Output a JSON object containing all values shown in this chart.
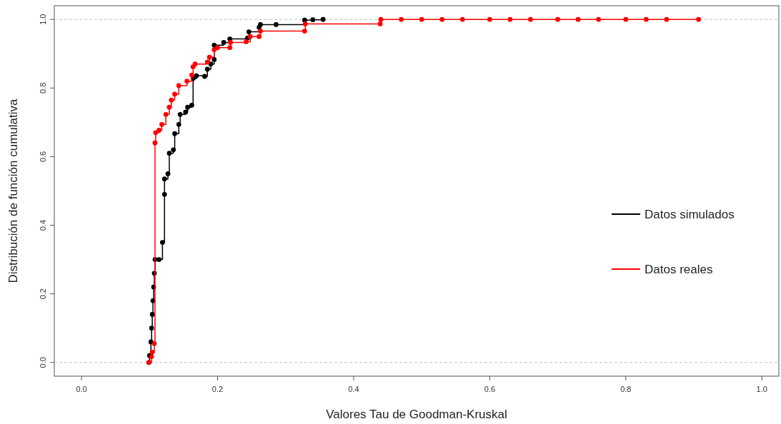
{
  "chart_data": {
    "type": "step",
    "xlabel": "Valores Tau de Goodman-Kruskal",
    "ylabel": "Distribución de función cumulativa",
    "xlim": [
      -0.04,
      1.025
    ],
    "ylim": [
      -0.04,
      1.04
    ],
    "xticks": [
      {
        "value": 0,
        "label": "0.0"
      },
      {
        "value": 0.2,
        "label": "0.2"
      },
      {
        "value": 0.4,
        "label": "0.4"
      },
      {
        "value": 0.6,
        "label": "0.6"
      },
      {
        "value": 0.8,
        "label": "0.8"
      },
      {
        "value": 1,
        "label": "1.0"
      }
    ],
    "yticks": [
      {
        "value": 0,
        "label": "0.0"
      },
      {
        "value": 0.2,
        "label": "0.2"
      },
      {
        "value": 0.4,
        "label": "0.4"
      },
      {
        "value": 0.6,
        "label": "0.6"
      },
      {
        "value": 0.8,
        "label": "0.8"
      },
      {
        "value": 1,
        "label": "1.0"
      }
    ],
    "marker": "circle",
    "legend": "right",
    "grid": false,
    "ref_lines": [
      {
        "axis": "y",
        "value": 0,
        "color": "#c0c0c0",
        "line_style": "dashed"
      },
      {
        "axis": "y",
        "value": 1,
        "color": "#c0c0c0",
        "line_style": "dashed"
      }
    ],
    "series": [
      {
        "name": "Datos simulados",
        "color": "#000000",
        "x": [
          0.099,
          0.1,
          0.102,
          0.103,
          0.104,
          0.105,
          0.106,
          0.107,
          0.108,
          0.114,
          0.119,
          0.122,
          0.122,
          0.127,
          0.129,
          0.135,
          0.137,
          0.143,
          0.145,
          0.153,
          0.156,
          0.162,
          0.164,
          0.169,
          0.181,
          0.185,
          0.19,
          0.195,
          0.195,
          0.209,
          0.218,
          0.244,
          0.246,
          0.261,
          0.263,
          0.286,
          0.328,
          0.34,
          0.355
        ],
        "values": [
          0.0,
          0.02,
          0.06,
          0.1,
          0.14,
          0.18,
          0.22,
          0.26,
          0.3,
          0.3,
          0.35,
          0.49,
          0.535,
          0.55,
          0.61,
          0.62,
          0.667,
          0.694,
          0.723,
          0.73,
          0.744,
          0.75,
          0.828,
          0.836,
          0.834,
          0.855,
          0.87,
          0.883,
          0.925,
          0.933,
          0.943,
          0.946,
          0.964,
          0.977,
          0.985,
          0.985,
          0.998,
          0.999,
          1.0
        ]
      },
      {
        "name": "Datos reales",
        "color": "#ff0000",
        "x": [
          0.099,
          0.103,
          0.104,
          0.107,
          0.108,
          0.109,
          0.114,
          0.118,
          0.124,
          0.129,
          0.132,
          0.137,
          0.143,
          0.155,
          0.162,
          0.164,
          0.167,
          0.185,
          0.188,
          0.195,
          0.2,
          0.218,
          0.219,
          0.242,
          0.248,
          0.261,
          0.263,
          0.328,
          0.329,
          0.439,
          0.44,
          0.47,
          0.5,
          0.53,
          0.56,
          0.6,
          0.63,
          0.66,
          0.7,
          0.73,
          0.76,
          0.8,
          0.83,
          0.86,
          0.907
        ],
        "values": [
          0.0,
          0.017,
          0.03,
          0.055,
          0.64,
          0.67,
          0.677,
          0.694,
          0.723,
          0.744,
          0.765,
          0.782,
          0.807,
          0.82,
          0.838,
          0.862,
          0.87,
          0.876,
          0.89,
          0.912,
          0.918,
          0.918,
          0.933,
          0.935,
          0.95,
          0.95,
          0.966,
          0.966,
          0.987,
          0.987,
          1.0,
          1.0,
          1.0,
          1.0,
          1.0,
          1.0,
          1.0,
          1.0,
          1.0,
          1.0,
          1.0,
          1.0,
          1.0,
          1.0,
          1.0
        ]
      }
    ]
  }
}
